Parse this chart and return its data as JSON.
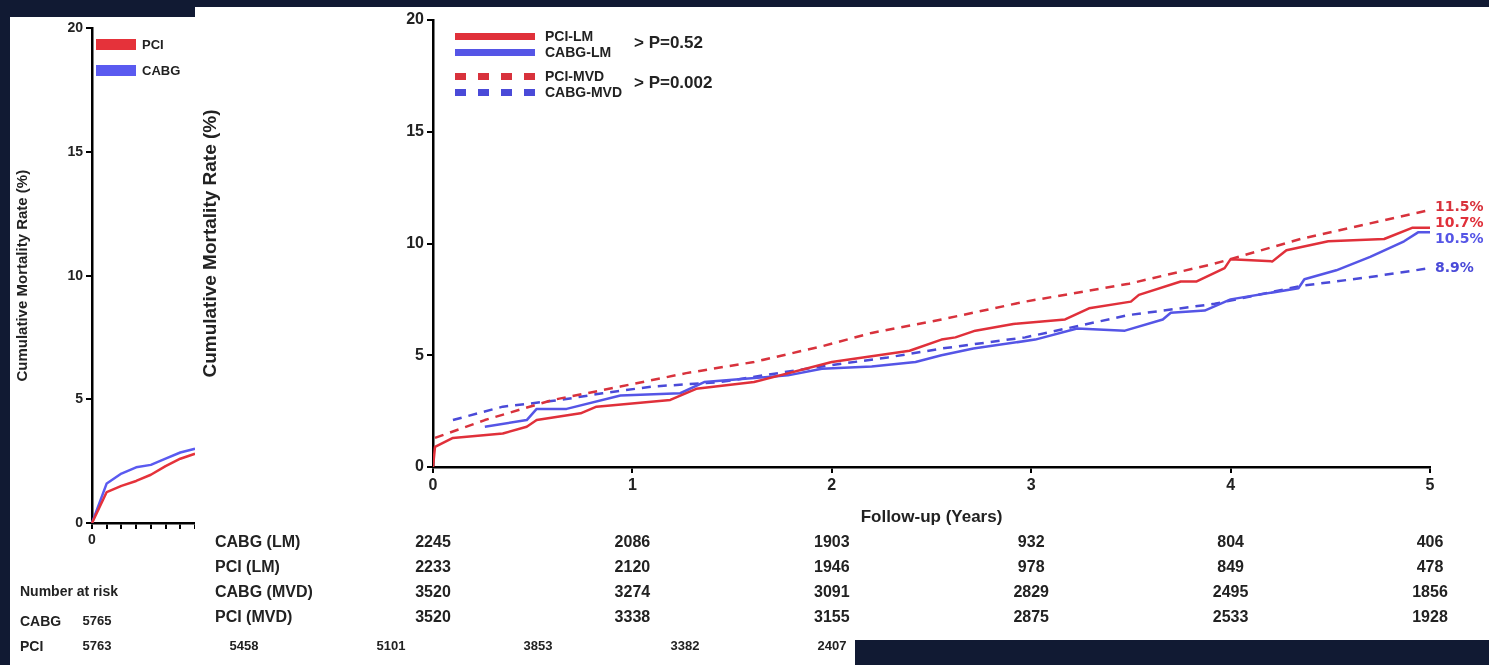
{
  "chart_data": [
    {
      "type": "line",
      "ylabel": "Cumulative Mortality Rate (%)",
      "categories": [
        "0",
        null,
        null,
        null,
        null,
        null,
        null,
        null
      ],
      "ylim": [
        0,
        20
      ],
      "yticks": [
        0,
        5,
        10,
        15,
        20
      ],
      "legend": "top left",
      "marker": "none",
      "series": [
        {
          "name": "PCI",
          "color": "#e5323a",
          "values": [
            0,
            1.25,
            1.5,
            1.7,
            1.95,
            2.3,
            2.6,
            2.8
          ]
        },
        {
          "name": "CABG",
          "color": "#5a5af0",
          "values": [
            0,
            1.6,
            2.0,
            2.25,
            2.35,
            2.6,
            2.85,
            3.0
          ]
        }
      ],
      "annotations": [
        "Number at risk",
        "CABG  5765",
        "PCI  5763  5458  5101  3853  3382  2407"
      ]
    },
    {
      "type": "line",
      "xlabel": "Follow-up (Years)",
      "ylabel": "Cumulative Mortality Rate (%)",
      "xlim": [
        0,
        5
      ],
      "xticks": [
        0,
        1,
        2,
        3,
        4,
        5
      ],
      "ylim": [
        0,
        20
      ],
      "yticks": [
        0,
        5,
        10,
        15,
        20
      ],
      "legend": "top left",
      "marker": "none",
      "series": [
        {
          "name": "PCI-LM",
          "color": "#e0303a",
          "line_style": "solid",
          "x": [
            0,
            0.01,
            0.1,
            0.35,
            0.47,
            0.52,
            0.74,
            0.82,
            1.19,
            1.32,
            1.61,
            2.0,
            2.39,
            2.55,
            2.62,
            2.72,
            2.91,
            3.17,
            3.29,
            3.5,
            3.54,
            3.75,
            3.83,
            3.97,
            4.0,
            4.21,
            4.28,
            4.49,
            4.77,
            4.91,
            5.0
          ],
          "values": [
            0,
            0.9,
            1.3,
            1.5,
            1.8,
            2.1,
            2.4,
            2.7,
            3.0,
            3.5,
            3.8,
            4.7,
            5.2,
            5.7,
            5.8,
            6.1,
            6.4,
            6.6,
            7.1,
            7.4,
            7.7,
            8.3,
            8.3,
            8.9,
            9.3,
            9.2,
            9.7,
            10.1,
            10.2,
            10.7,
            10.7
          ],
          "value_labels": [
            null,
            null,
            null,
            null,
            null,
            null,
            null,
            null,
            null,
            null,
            null,
            null,
            null,
            null,
            null,
            null,
            null,
            null,
            null,
            null,
            null,
            null,
            null,
            null,
            null,
            null,
            null,
            null,
            null,
            null,
            "10.7%"
          ]
        },
        {
          "name": "CABG-LM",
          "color": "#5555e6",
          "line_style": "solid",
          "x": [
            0.26,
            0.47,
            0.52,
            0.67,
            0.94,
            1.24,
            1.36,
            1.78,
            1.95,
            2.2,
            2.42,
            2.55,
            2.71,
            3.02,
            3.23,
            3.47,
            3.66,
            3.7,
            3.87,
            4.0,
            4.34,
            4.37,
            4.53,
            4.7,
            4.87,
            4.94,
            5.0
          ],
          "values": [
            1.8,
            2.1,
            2.6,
            2.6,
            3.2,
            3.3,
            3.8,
            4.1,
            4.4,
            4.5,
            4.7,
            5.0,
            5.3,
            5.7,
            6.2,
            6.1,
            6.6,
            6.9,
            7.0,
            7.5,
            8.0,
            8.4,
            8.8,
            9.4,
            10.1,
            10.5,
            10.5
          ],
          "value_labels": [
            null,
            null,
            null,
            null,
            null,
            null,
            null,
            null,
            null,
            null,
            null,
            null,
            null,
            null,
            null,
            null,
            null,
            null,
            null,
            null,
            null,
            null,
            null,
            null,
            null,
            null,
            "10.5%"
          ]
        },
        {
          "name": "PCI-MVD",
          "color": "#d8323c",
          "line_style": "dashed",
          "x": [
            0.01,
            0.26,
            0.6,
            0.94,
            1.27,
            1.61,
            1.95,
            2.2,
            2.55,
            2.97,
            3.49,
            3.92,
            4.35,
            4.7,
            5.0
          ],
          "values": [
            1.3,
            2.1,
            3.0,
            3.6,
            4.2,
            4.7,
            5.4,
            6.0,
            6.6,
            7.4,
            8.2,
            9.1,
            10.2,
            10.9,
            11.5
          ],
          "value_labels": [
            null,
            null,
            null,
            null,
            null,
            null,
            null,
            null,
            null,
            null,
            null,
            null,
            null,
            null,
            "11.5%"
          ]
        },
        {
          "name": "CABG-MVD",
          "color": "#4a4ad8",
          "line_style": "dashed",
          "x": [
            0.1,
            0.35,
            0.64,
            0.85,
            1.1,
            1.44,
            1.95,
            2.28,
            2.55,
            2.97,
            3.49,
            3.92,
            4.35,
            4.7,
            5.0
          ],
          "values": [
            2.1,
            2.7,
            3.0,
            3.3,
            3.6,
            3.8,
            4.5,
            4.9,
            5.3,
            5.8,
            6.8,
            7.3,
            8.1,
            8.5,
            8.9
          ],
          "value_labels": [
            null,
            null,
            null,
            null,
            null,
            null,
            null,
            null,
            null,
            null,
            null,
            null,
            null,
            null,
            "8.9%"
          ]
        }
      ],
      "annotations": [
        {
          "text": "> P=0.52"
        },
        {
          "text": "> P=0.002"
        },
        "CABG (LM)  2245  2086  1903  932  804  406",
        "PCI (LM)  2233  2120  1946  978  849  478",
        "CABG (MVD)  3520  3274  3091  2829  2495  1856",
        "PCI (MVD)  3520  3338  3155  2875  2533  1928"
      ]
    }
  ]
}
